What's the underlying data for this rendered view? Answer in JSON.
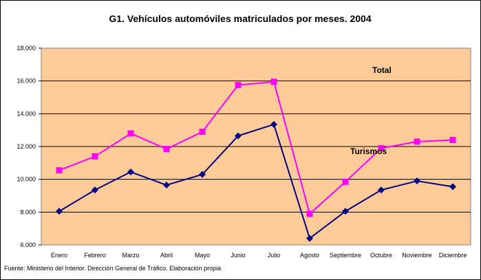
{
  "chart_data": {
    "type": "line",
    "title": "G1. Vehículos automóviles matriculados por meses. 2004",
    "categories": [
      "Enero",
      "Febrero",
      "Marzo",
      "Abril",
      "Mayo",
      "Junio",
      "Julio",
      "Agosto",
      "Septiembre",
      "Octubre",
      "Noviembre",
      "Diciembre"
    ],
    "ylim": [
      6000,
      18000
    ],
    "yticks": [
      "6.000",
      "8.000",
      "10.000",
      "12.000",
      "14.000",
      "16.000",
      "18.000"
    ],
    "ytick_values": [
      6000,
      8000,
      10000,
      12000,
      14000,
      16000,
      18000
    ],
    "grid": true,
    "plot_background": "#FFCC99",
    "series": [
      {
        "name": "Total",
        "color": "#FF00FF",
        "marker": "square",
        "values": [
          10550,
          11400,
          12800,
          11850,
          12900,
          15750,
          15950,
          7900,
          9850,
          11900,
          12300,
          12400
        ]
      },
      {
        "name": "Turismos",
        "color": "#000080",
        "marker": "diamond",
        "values": [
          8050,
          9350,
          10450,
          9650,
          10300,
          12650,
          13350,
          6400,
          8050,
          9350,
          9900,
          9550
        ]
      }
    ]
  },
  "footer": {
    "source": "Fuente: Ministerio del Interior. Dirección General de Tráfico. Elaboración propia"
  }
}
